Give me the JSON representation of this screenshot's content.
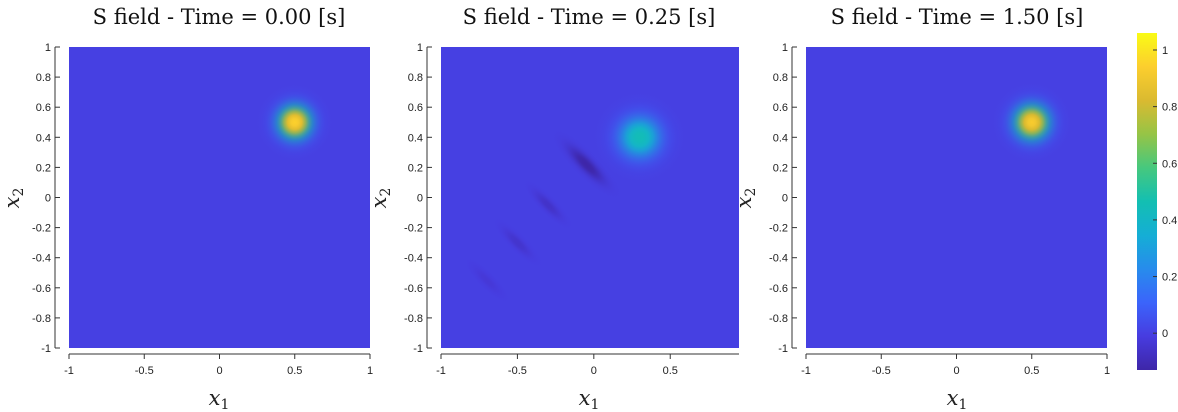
{
  "chart_data": [
    {
      "type": "heatmap",
      "title": "S field - Time = 0.00 [s]",
      "xlabel": "x1",
      "ylabel": "x2",
      "xlim": [
        -1,
        1
      ],
      "ylim": [
        -1,
        1
      ],
      "x_ticks": [
        -1,
        -0.5,
        0,
        0.5,
        1
      ],
      "x_tick_labels": [
        "-1",
        "-0.5",
        "0",
        "0.5",
        "1"
      ],
      "y_ticks": [
        1,
        0.8,
        0.6,
        0.4,
        0.2,
        0,
        -0.2,
        -0.4,
        -0.6,
        -0.8,
        -1
      ],
      "y_tick_labels": [
        "1",
        "0.8",
        "0.6",
        "0.4",
        "0.2",
        "0",
        "-0.2",
        "-0.4",
        "-0.6",
        "-0.8",
        "-1"
      ],
      "background_value": 0,
      "peak": {
        "x": 0.5,
        "y": 0.5,
        "value": 0.95,
        "width": 0.12
      },
      "ripples": []
    },
    {
      "type": "heatmap",
      "title": "S field - Time = 0.25 [s]",
      "xlabel": "x1",
      "ylabel": "x2",
      "xlim": [
        -1,
        0.95
      ],
      "ylim": [
        -1,
        1
      ],
      "x_ticks": [
        -1,
        -0.5,
        0,
        0.5
      ],
      "x_tick_labels": [
        "-1",
        "-0.5",
        "0",
        "0.5"
      ],
      "y_ticks": [
        1,
        0.8,
        0.6,
        0.4,
        0.2,
        0,
        -0.2,
        -0.4,
        -0.6,
        -0.8,
        -1
      ],
      "y_tick_labels": [
        "1",
        "0.8",
        "0.6",
        "0.4",
        "0.2",
        "0",
        "-0.2",
        "-0.4",
        "-0.6",
        "-0.8",
        "-1"
      ],
      "background_value": 0,
      "peak": {
        "x": 0.3,
        "y": 0.4,
        "value": 0.45,
        "width": 0.15
      },
      "ripples": [
        {
          "x": -0.05,
          "y": 0.22,
          "value": -0.13
        },
        {
          "x": -0.3,
          "y": -0.05,
          "value": -0.06
        },
        {
          "x": -0.5,
          "y": -0.3,
          "value": -0.05
        },
        {
          "x": -0.7,
          "y": -0.55,
          "value": -0.03
        }
      ]
    },
    {
      "type": "heatmap",
      "title": "S field - Time = 1.50 [s]",
      "xlabel": "x1",
      "ylabel": "x2",
      "xlim": [
        -1,
        1
      ],
      "ylim": [
        -1,
        1
      ],
      "x_ticks": [
        -1,
        -0.5,
        0,
        0.5,
        1
      ],
      "x_tick_labels": [
        "-1",
        "-0.5",
        "0",
        "0.5",
        "1"
      ],
      "y_ticks": [
        1,
        0.8,
        0.6,
        0.4,
        0.2,
        0,
        -0.2,
        -0.4,
        -0.6,
        -0.8,
        -1
      ],
      "y_tick_labels": [
        "1",
        "0.8",
        "0.6",
        "0.4",
        "0.2",
        "0",
        "-0.2",
        "-0.4",
        "-0.6",
        "-0.8",
        "-1"
      ],
      "background_value": 0,
      "peak": {
        "x": 0.5,
        "y": 0.5,
        "value": 0.93,
        "width": 0.125
      },
      "ripples": []
    }
  ],
  "colorbar": {
    "range": [
      -0.13,
      1.06
    ],
    "ticks": [
      1,
      0.8,
      0.6,
      0.4,
      0.2,
      0
    ],
    "tick_labels": [
      "1",
      "0.8",
      "0.6",
      "0.4",
      "0.2",
      "0"
    ],
    "colormap": "parula"
  }
}
